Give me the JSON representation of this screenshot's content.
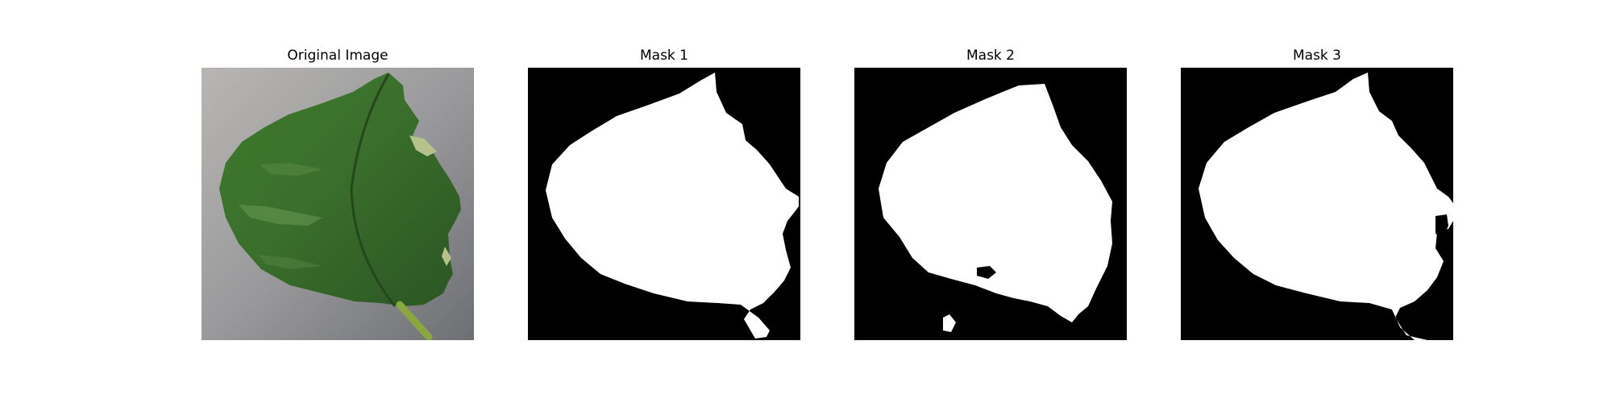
{
  "figure": {
    "panels": [
      {
        "title": "Original Image",
        "kind": "photo"
      },
      {
        "title": "Mask 1",
        "kind": "mask"
      },
      {
        "title": "Mask 2",
        "kind": "mask"
      },
      {
        "title": "Mask 3",
        "kind": "mask"
      }
    ]
  },
  "colors": {
    "background": "#ffffff",
    "mask_background": "#000000",
    "mask_foreground": "#ffffff",
    "photo_background": "#9a9a9c",
    "leaf_dark": "#2f5e25",
    "leaf_mid": "#3f7a30",
    "leaf_light": "#6a9a55",
    "stem": "#8aa640"
  }
}
